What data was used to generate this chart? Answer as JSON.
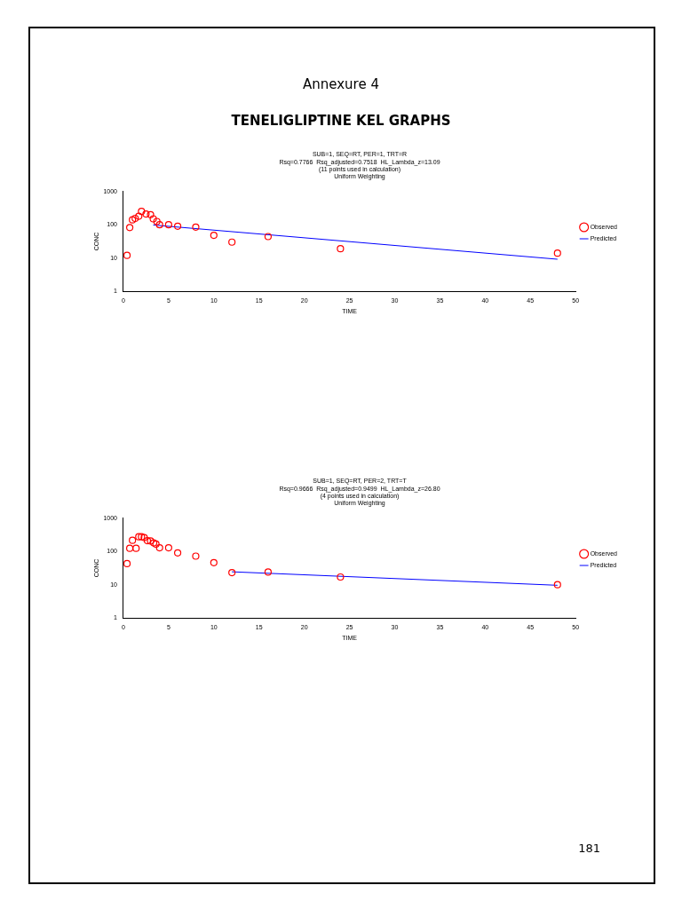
{
  "chart_data": [
    {
      "type": "scatter",
      "title": "SUB=1, SEQ=RT, PER=1, TRT=R\nRsq=0.7766  Rsq_adjusted=0.7518  HL_Lambda_z=13.09\n(11 points used in calculation)\nUniform Weighting",
      "xlabel": "TIME",
      "ylabel": "CONC",
      "annotations": [
        "Annexure 4",
        "TENELIGLIPTINE KEL GRAPHS"
      ],
      "log": "y",
      "xlim": [
        0,
        50
      ],
      "xticks": [
        0,
        5,
        10,
        15,
        20,
        25,
        30,
        35,
        40,
        45,
        50
      ],
      "ylim": [
        1,
        1000
      ],
      "yticks": [
        1,
        10,
        100,
        1000
      ],
      "grid": false,
      "legend": "right",
      "series": [
        {
          "name": "Observed",
          "type": "scatter",
          "marker": "circle",
          "color": "#ff0000",
          "x": [
            0.4,
            0.7,
            1.0,
            1.3,
            1.7,
            2.0,
            2.5,
            3.0,
            3.3,
            3.7,
            4.0,
            5.0,
            6.0,
            8.0,
            10,
            12,
            16,
            24,
            48
          ],
          "values": [
            12,
            82,
            140,
            155,
            180,
            250,
            210,
            200,
            150,
            125,
            100,
            100,
            90,
            85,
            48,
            30,
            44,
            19,
            14
          ]
        },
        {
          "name": "Predicted",
          "type": "line",
          "marker": "none",
          "line_style": "solid",
          "color": "#0000ff",
          "x": [
            3.3,
            48
          ],
          "values": [
            98,
            9.2
          ]
        }
      ]
    },
    {
      "type": "scatter",
      "title": "SUB=1, SEQ=RT, PER=2, TRT=T\nRsq=0.9666  Rsq_adjusted=0.9499  HL_Lambda_z=26.80\n(4 points used in calculation)\nUniform Weighting",
      "xlabel": "TIME",
      "ylabel": "CONC",
      "annotations": [
        "181"
      ],
      "log": "y",
      "xlim": [
        0,
        50
      ],
      "xticks": [
        0,
        5,
        10,
        15,
        20,
        25,
        30,
        35,
        40,
        45,
        50
      ],
      "ylim": [
        1,
        1000
      ],
      "yticks": [
        1,
        10,
        100,
        1000
      ],
      "grid": false,
      "legend": "right",
      "series": [
        {
          "name": "Observed",
          "type": "scatter",
          "marker": "circle",
          "color": "#ff0000",
          "x": [
            0.4,
            0.7,
            1.0,
            1.4,
            1.7,
            2.0,
            2.3,
            2.65,
            3.0,
            3.35,
            3.6,
            4.0,
            5.0,
            6.0,
            8.0,
            10,
            12,
            16,
            24,
            48
          ],
          "values": [
            43,
            124,
            215,
            124,
            275,
            275,
            260,
            210,
            205,
            180,
            165,
            128,
            128,
            90,
            72,
            46,
            23,
            24,
            17,
            10
          ]
        },
        {
          "name": "Predicted",
          "type": "line",
          "marker": "none",
          "line_style": "solid",
          "color": "#0000ff",
          "x": [
            12,
            48
          ],
          "values": [
            24.4,
            9.6
          ]
        }
      ]
    }
  ]
}
